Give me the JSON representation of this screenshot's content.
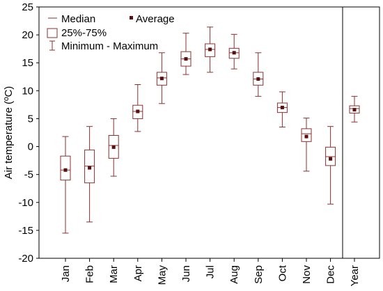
{
  "chart_data": {
    "type": "box",
    "ylabel": "Air temperature (ºC)",
    "ylim": [
      -20,
      25
    ],
    "yticks": [
      -20,
      -15,
      -10,
      -5,
      0,
      5,
      10,
      15,
      20,
      25
    ],
    "grid": false,
    "legend_position": "top-left",
    "legend": {
      "median": "Median",
      "average": "Average",
      "box": "25%-75%",
      "whisker": "Minimum - Maximum"
    },
    "colors": {
      "box": "#8b2f2f",
      "mean": "#5a0f0f"
    },
    "categories": [
      "Jan",
      "Feb",
      "Mar",
      "Apr",
      "May",
      "Jun",
      "Jul",
      "Aug",
      "Sep",
      "Oct",
      "Nov",
      "Dec",
      "Year"
    ],
    "min": [
      -15.5,
      -13.5,
      -5.3,
      2.7,
      7.7,
      12.9,
      13.3,
      13.9,
      9.0,
      3.5,
      -4.4,
      -10.3,
      4.4
    ],
    "q1": [
      -6.0,
      -6.5,
      -2.1,
      5.0,
      11.0,
      14.4,
      16.1,
      15.8,
      11.0,
      6.1,
      0.9,
      -3.4,
      6.0
    ],
    "median": [
      -4.2,
      -3.5,
      0.2,
      6.3,
      12.3,
      15.7,
      17.4,
      16.8,
      12.1,
      7.0,
      2.3,
      -1.8,
      6.8
    ],
    "q3": [
      -1.7,
      -0.6,
      2.0,
      7.4,
      13.3,
      17.0,
      18.4,
      17.6,
      13.3,
      7.8,
      3.2,
      -0.1,
      7.3
    ],
    "max": [
      1.8,
      3.6,
      5.0,
      11.1,
      16.8,
      20.3,
      21.4,
      20.1,
      16.8,
      9.8,
      5.1,
      3.6,
      9.0
    ],
    "mean": [
      -4.2,
      -3.8,
      -0.1,
      6.3,
      12.2,
      15.7,
      17.4,
      16.8,
      12.1,
      7.0,
      1.8,
      -2.2,
      6.6
    ]
  }
}
